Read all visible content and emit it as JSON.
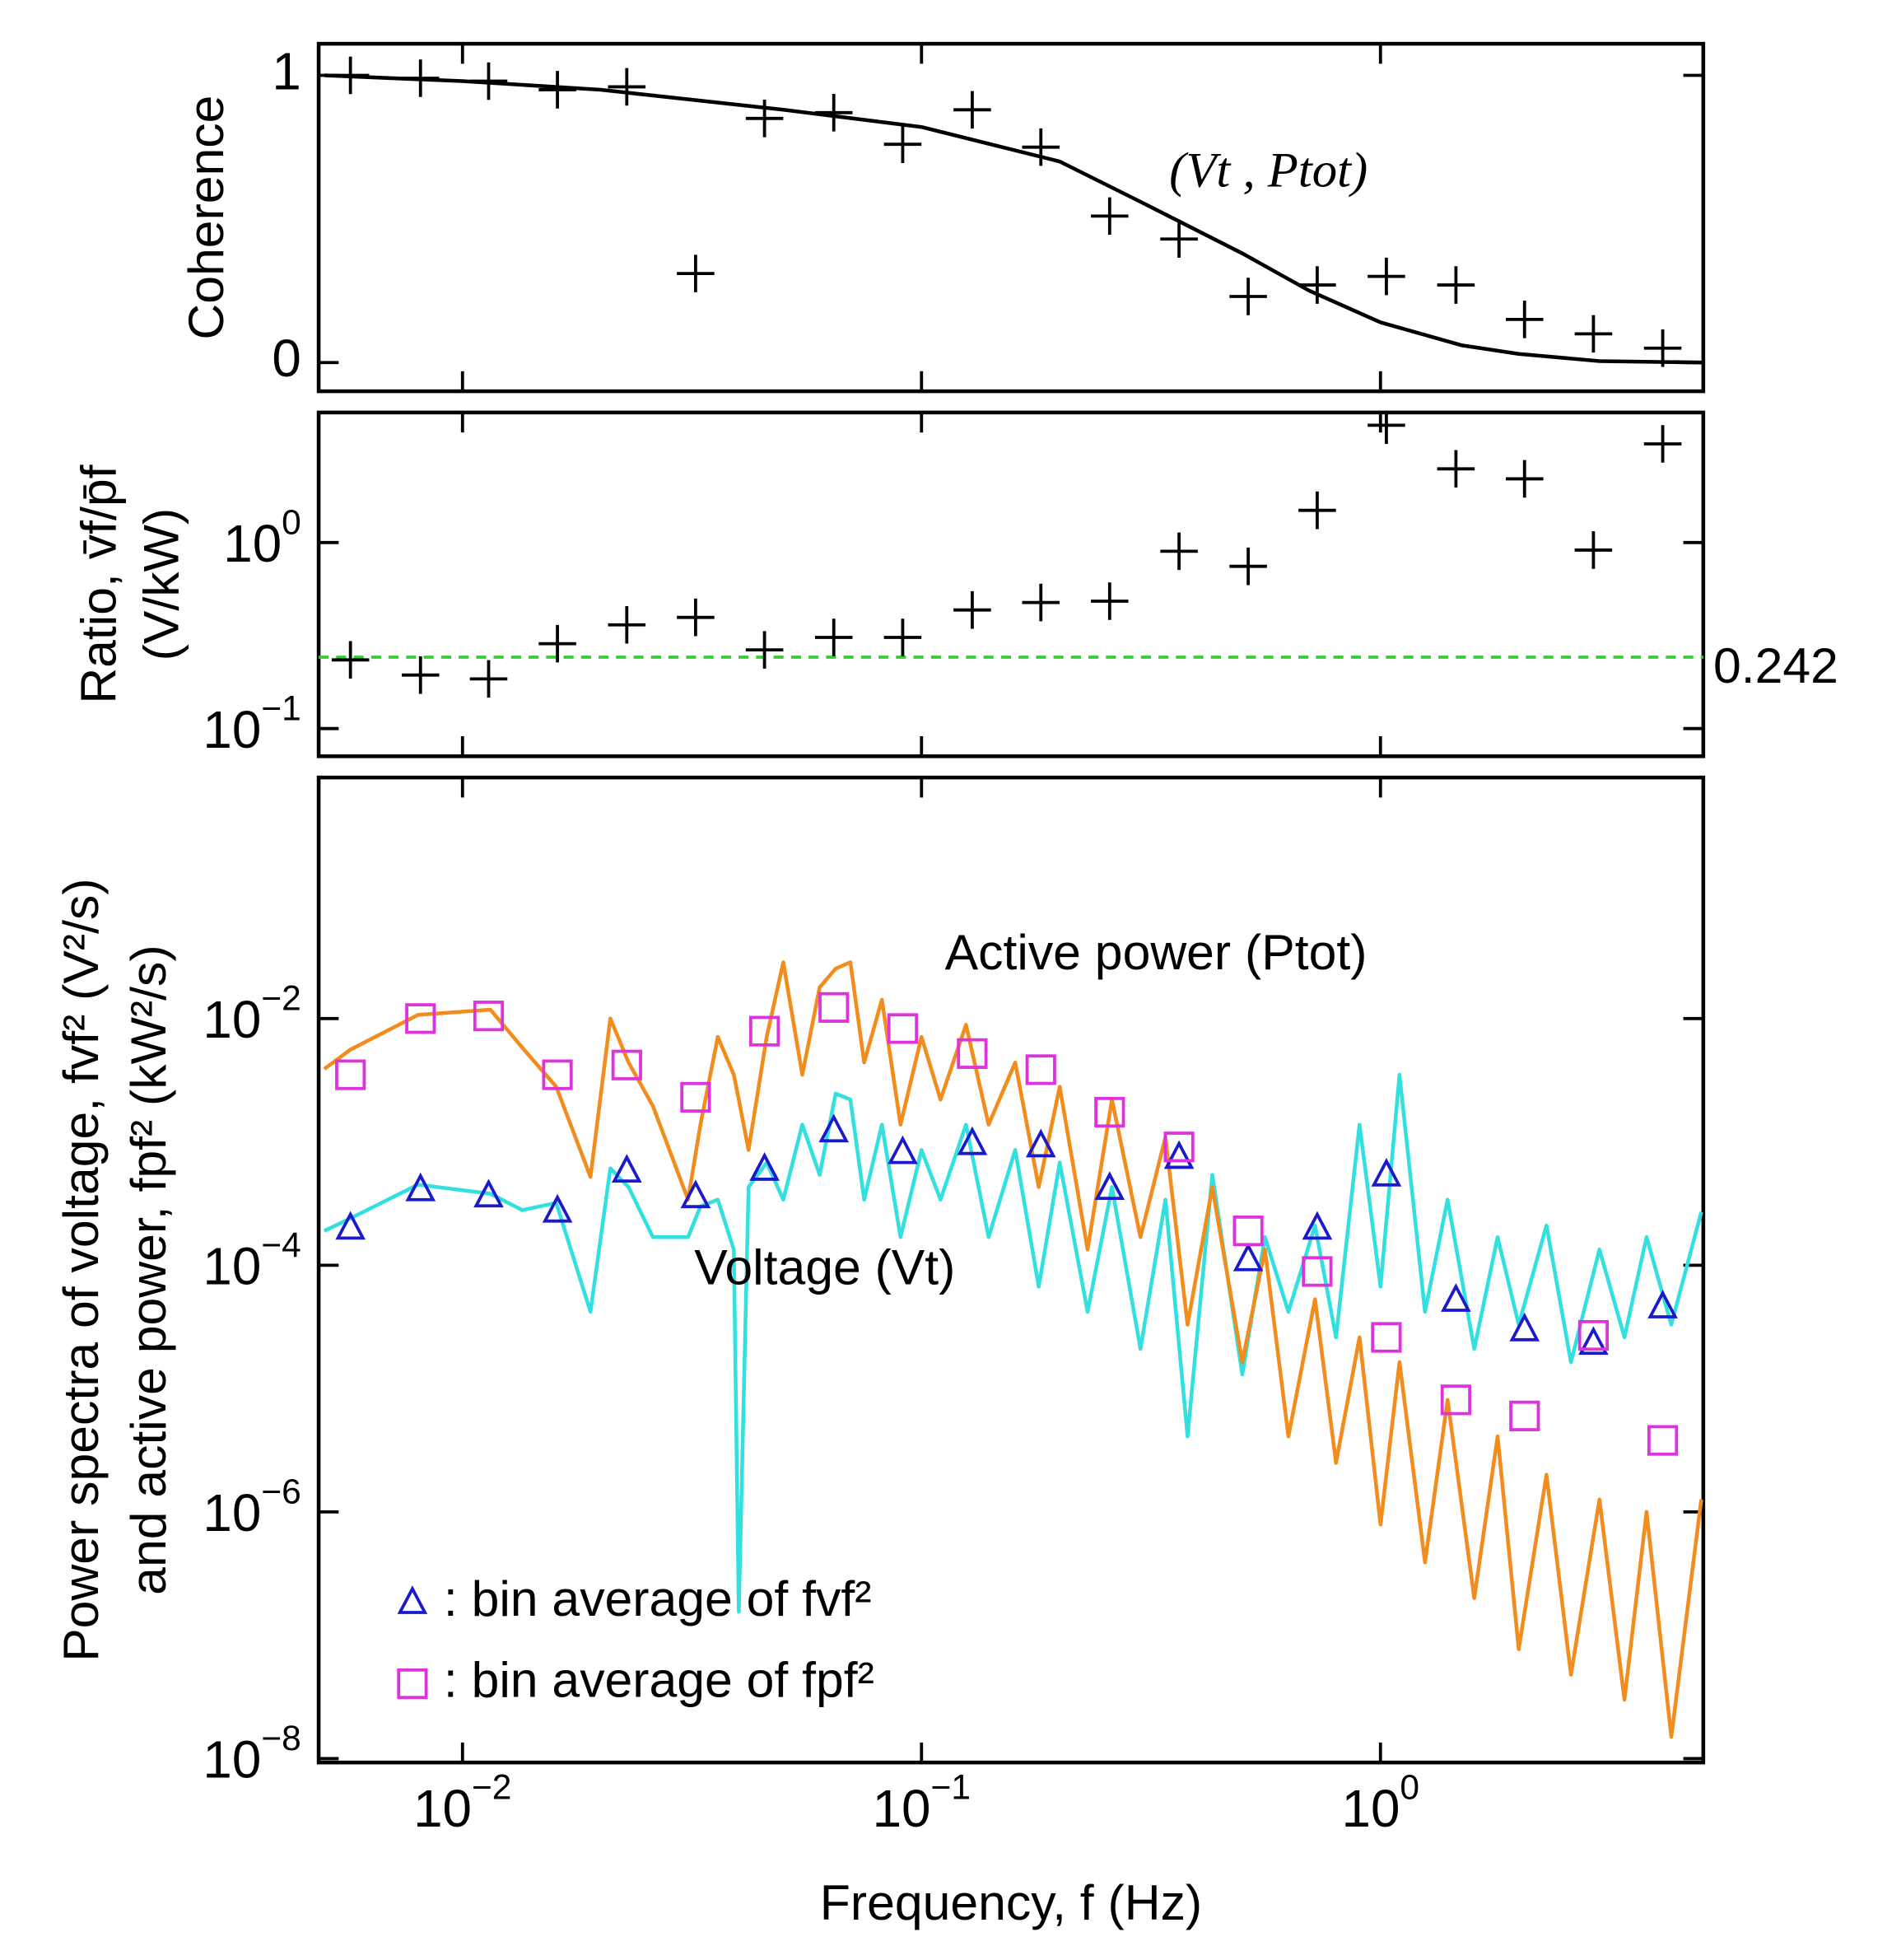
{
  "chart_data": [
    {
      "type": "scatter",
      "ylabel": [
        "Coherence"
      ],
      "xlim": [
        0.00486,
        5.05
      ],
      "xlog": true,
      "ylim": [
        -0.1,
        1.11
      ],
      "yticks": [
        0,
        1
      ],
      "annotation": "(Vt , Ptot)",
      "series": [
        {
          "marker": "plus",
          "color": "#000000",
          "x": [
            0.0057,
            0.0081,
            0.0114,
            0.0161,
            0.0228,
            0.0322,
            0.0455,
            0.0644,
            0.091,
            0.129,
            0.182,
            0.257,
            0.364,
            0.515,
            0.728,
            1.03,
            1.46,
            2.06,
            2.91,
            4.12
          ],
          "values": [
            1.0,
            0.99,
            0.98,
            0.95,
            0.96,
            0.31,
            0.85,
            0.87,
            0.76,
            0.88,
            0.75,
            0.51,
            0.43,
            0.23,
            0.27,
            0.3,
            0.27,
            0.15,
            0.1,
            0.05
          ]
        },
        {
          "marker": "line",
          "color": "#000000",
          "x": [
            0.005,
            0.01,
            0.02,
            0.05,
            0.1,
            0.2,
            0.3,
            0.5,
            0.7,
            1,
            1.5,
            2,
            3,
            5
          ],
          "values": [
            1.0,
            0.98,
            0.95,
            0.88,
            0.82,
            0.7,
            0.56,
            0.38,
            0.25,
            0.14,
            0.06,
            0.03,
            0.005,
            0
          ]
        }
      ]
    },
    {
      "type": "scatter",
      "ylabel": [
        "Ratio, v̄f/p̄f",
        "(V/kW)"
      ],
      "xlim": [
        0.00486,
        5.05
      ],
      "xlog": true,
      "ylim": [
        0.071,
        5
      ],
      "ylog": true,
      "yticks": [
        {
          "value": 0.1,
          "label": "10",
          "exponent": "−1"
        },
        {
          "value": 1,
          "label": "10",
          "exponent": "0"
        }
      ],
      "hline": 0.242,
      "hline_color": "#33cc33",
      "series": [
        {
          "marker": "plus",
          "color": "#000000",
          "x": [
            0.0057,
            0.0081,
            0.0114,
            0.0161,
            0.0228,
            0.0322,
            0.0455,
            0.0644,
            0.091,
            0.129,
            0.182,
            0.257,
            0.364,
            0.515,
            0.728,
            1.03,
            1.46,
            2.06,
            2.91,
            4.12
          ],
          "values": [
            0.234,
            0.194,
            0.185,
            0.286,
            0.361,
            0.396,
            0.265,
            0.309,
            0.309,
            0.434,
            0.476,
            0.484,
            0.898,
            0.745,
            1.49,
            4.27,
            2.49,
            2.2,
            0.911,
            3.39
          ]
        }
      ]
    },
    {
      "type": "line",
      "ylabel": [
        "Power spectra of voltage, fvf² (V²/s)",
        "and active power, fpf² (kW²/s)"
      ],
      "xlabel": "Frequency, f (Hz)",
      "xlim": [
        0.00486,
        5.05
      ],
      "xlog": true,
      "xticks": [
        {
          "value": 0.01,
          "label": "10",
          "exponent": "−2"
        },
        {
          "value": 0.1,
          "label": "10",
          "exponent": "−1"
        },
        {
          "value": 1,
          "label": "10",
          "exponent": "0"
        }
      ],
      "ylim": [
        9.3e-09,
        0.9
      ],
      "ylog": true,
      "yticks": [
        {
          "value": 1e-08,
          "label": "10",
          "exponent": "−8"
        },
        {
          "value": 1e-06,
          "label": "10",
          "exponent": "−6"
        },
        {
          "value": 0.0001,
          "label": "10",
          "exponent": "−4"
        },
        {
          "value": 0.01,
          "label": "10",
          "exponent": "−2"
        }
      ],
      "annotations": [
        {
          "text": "Active power (Ptot)",
          "color": "#dd33dd"
        },
        {
          "text": "Voltage (Vt)",
          "color": "#1a1acc"
        }
      ],
      "legend": "lower left",
      "series": [
        {
          "marker": "line",
          "color": "#33e0e0",
          "x": [
            0.005,
            0.0057,
            0.008,
            0.0115,
            0.0135,
            0.016,
            0.019,
            0.021,
            0.023,
            0.026,
            0.031,
            0.033,
            0.036,
            0.039,
            0.04,
            0.042,
            0.046,
            0.05,
            0.055,
            0.06,
            0.065,
            0.07,
            0.075,
            0.082,
            0.09,
            0.1,
            0.11,
            0.125,
            0.14,
            0.16,
            0.18,
            0.2,
            0.23,
            0.26,
            0.3,
            0.34,
            0.38,
            0.43,
            0.5,
            0.56,
            0.63,
            0.72,
            0.8,
            0.9,
            1.0,
            1.1,
            1.25,
            1.4,
            1.6,
            1.8,
            2.0,
            2.3,
            2.6,
            3.0,
            3.4,
            3.8,
            4.3,
            5.0
          ],
          "values": [
            0.00019,
            0.00024,
            0.00045,
            0.00038,
            0.00028,
            0.00032,
            4.2e-05,
            0.00061,
            0.00043,
            0.000169,
            0.000169,
            0.0003,
            0.00034,
            0.000134,
            1.55e-07,
            0.00043,
            0.00068,
            0.00034,
            0.00138,
            0.00054,
            0.00247,
            0.0022,
            0.00034,
            0.00138,
            0.000169,
            0.00086,
            0.00034,
            0.00138,
            0.000169,
            0.00086,
            6.7e-05,
            0.00068,
            4.2e-05,
            0.00043,
            2.1e-05,
            0.00034,
            4.1e-06,
            0.00054,
            1.3e-05,
            0.000169,
            4.2e-05,
            0.00021,
            2.6e-05,
            0.00138,
            6.7e-05,
            0.0035,
            4.2e-05,
            0.00034,
            2.1e-05,
            0.000169,
            3.3e-05,
            0.00021,
            1.64e-05,
            0.000134,
            2.6e-05,
            0.000169,
            3.3e-05,
            0.00027
          ]
        },
        {
          "marker": "line",
          "color": "#f28c1c",
          "x": [
            0.005,
            0.0057,
            0.008,
            0.0115,
            0.0135,
            0.016,
            0.019,
            0.021,
            0.023,
            0.026,
            0.031,
            0.033,
            0.036,
            0.039,
            0.04,
            0.042,
            0.046,
            0.05,
            0.055,
            0.06,
            0.065,
            0.07,
            0.075,
            0.082,
            0.09,
            0.1,
            0.11,
            0.125,
            0.14,
            0.16,
            0.18,
            0.2,
            0.23,
            0.26,
            0.3,
            0.34,
            0.38,
            0.43,
            0.5,
            0.56,
            0.63,
            0.72,
            0.8,
            0.9,
            1.0,
            1.1,
            1.25,
            1.4,
            1.6,
            1.8,
            2.0,
            2.3,
            2.6,
            3.0,
            3.4,
            3.8,
            4.3,
            5.0
          ],
          "values": [
            0.0039,
            0.0056,
            0.0107,
            0.0118,
            0.0058,
            0.0028,
            0.00052,
            0.01,
            0.0044,
            0.00195,
            0.00034,
            0.00138,
            0.0071,
            0.0035,
            0.0022,
            0.00086,
            0.0071,
            0.0286,
            0.0035,
            0.0179,
            0.0254,
            0.0286,
            0.0044,
            0.0142,
            0.00138,
            0.0071,
            0.0022,
            0.0089,
            0.00138,
            0.0044,
            0.00043,
            0.0028,
            0.000134,
            0.0022,
            0.000169,
            0.00109,
            3.3e-05,
            0.00043,
            1.64e-05,
            0.000134,
            4.1e-06,
            5.3e-05,
            2.5e-06,
            2.6e-05,
            7.9e-07,
            1.64e-05,
            3.9e-07,
            8.1e-06,
            2e-07,
            4.1e-06,
            7.7e-08,
            2e-06,
            4.8e-08,
            1.26e-06,
            3e-08,
            1e-06,
            1.5e-08,
            1.26e-06
          ]
        },
        {
          "name": ": bin average of fvf²",
          "marker": "triangle",
          "color": "#1a1acc",
          "x": [
            0.0057,
            0.0081,
            0.0114,
            0.0161,
            0.0228,
            0.0322,
            0.0455,
            0.0644,
            0.091,
            0.129,
            0.182,
            0.257,
            0.364,
            0.515,
            0.728,
            1.03,
            1.46,
            2.06,
            2.91,
            4.12
          ],
          "values": [
            0.0002,
            0.00041,
            0.000365,
            0.000275,
            0.00058,
            0.00036,
            0.0006,
            0.00123,
            0.00082,
            0.00097,
            0.00093,
            0.00042,
            0.00075,
            0.000111,
            0.0002,
            0.00054,
            5.2e-05,
            3e-05,
            2.33e-05,
            4.6e-05
          ]
        },
        {
          "name": ": bin average of fpf²",
          "marker": "square",
          "color": "#dd33dd",
          "x": [
            0.0057,
            0.0081,
            0.0114,
            0.0161,
            0.0228,
            0.0322,
            0.0455,
            0.0644,
            0.091,
            0.129,
            0.182,
            0.257,
            0.364,
            0.515,
            0.728,
            1.03,
            1.46,
            2.06,
            2.91,
            4.12
          ],
          "values": [
            0.0035,
            0.01,
            0.0105,
            0.0035,
            0.0042,
            0.0023,
            0.0079,
            0.0123,
            0.0083,
            0.0052,
            0.00385,
            0.00174,
            0.00091,
            0.00019,
            8.9e-05,
            2.6e-05,
            8.1e-06,
            6e-06,
            2.7e-05,
            3.8e-06
          ]
        }
      ]
    }
  ]
}
